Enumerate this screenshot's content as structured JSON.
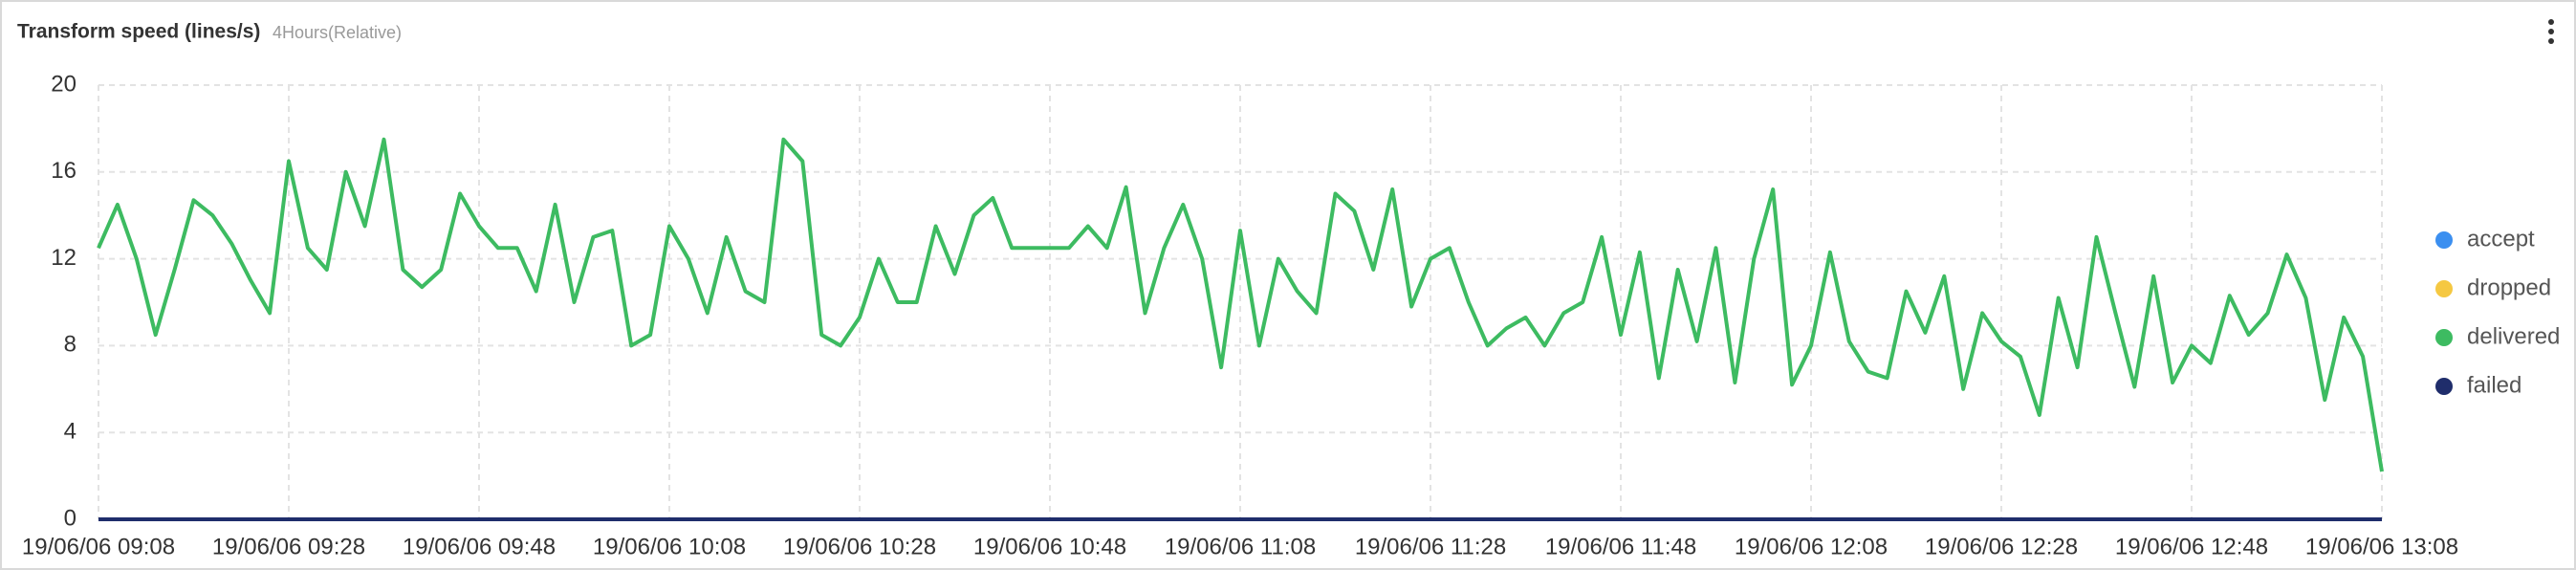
{
  "chart_data": {
    "type": "line",
    "title": "Transform speed (lines/s)",
    "subtitle": "4Hours(Relative)",
    "x": [
      "19/06/06 09:08",
      "19/06/06 09:10",
      "19/06/06 09:12",
      "19/06/06 09:14",
      "19/06/06 09:16",
      "19/06/06 09:18",
      "19/06/06 09:20",
      "19/06/06 09:22",
      "19/06/06 09:24",
      "19/06/06 09:26",
      "19/06/06 09:28",
      "19/06/06 09:30",
      "19/06/06 09:32",
      "19/06/06 09:34",
      "19/06/06 09:36",
      "19/06/06 09:38",
      "19/06/06 09:40",
      "19/06/06 09:42",
      "19/06/06 09:44",
      "19/06/06 09:46",
      "19/06/06 09:48",
      "19/06/06 09:50",
      "19/06/06 09:52",
      "19/06/06 09:54",
      "19/06/06 09:56",
      "19/06/06 09:58",
      "19/06/06 10:00",
      "19/06/06 10:02",
      "19/06/06 10:04",
      "19/06/06 10:06",
      "19/06/06 10:08",
      "19/06/06 10:10",
      "19/06/06 10:12",
      "19/06/06 10:14",
      "19/06/06 10:16",
      "19/06/06 10:18",
      "19/06/06 10:20",
      "19/06/06 10:22",
      "19/06/06 10:24",
      "19/06/06 10:26",
      "19/06/06 10:28",
      "19/06/06 10:30",
      "19/06/06 10:32",
      "19/06/06 10:34",
      "19/06/06 10:36",
      "19/06/06 10:38",
      "19/06/06 10:40",
      "19/06/06 10:42",
      "19/06/06 10:44",
      "19/06/06 10:46",
      "19/06/06 10:48",
      "19/06/06 10:50",
      "19/06/06 10:52",
      "19/06/06 10:54",
      "19/06/06 10:56",
      "19/06/06 10:58",
      "19/06/06 11:00",
      "19/06/06 11:02",
      "19/06/06 11:04",
      "19/06/06 11:06",
      "19/06/06 11:08",
      "19/06/06 11:10",
      "19/06/06 11:12",
      "19/06/06 11:14",
      "19/06/06 11:16",
      "19/06/06 11:18",
      "19/06/06 11:20",
      "19/06/06 11:22",
      "19/06/06 11:24",
      "19/06/06 11:26",
      "19/06/06 11:28",
      "19/06/06 11:30",
      "19/06/06 11:32",
      "19/06/06 11:34",
      "19/06/06 11:36",
      "19/06/06 11:38",
      "19/06/06 11:40",
      "19/06/06 11:42",
      "19/06/06 11:44",
      "19/06/06 11:46",
      "19/06/06 11:48",
      "19/06/06 11:50",
      "19/06/06 11:52",
      "19/06/06 11:54",
      "19/06/06 11:56",
      "19/06/06 11:58",
      "19/06/06 12:00",
      "19/06/06 12:02",
      "19/06/06 12:04",
      "19/06/06 12:06",
      "19/06/06 12:08",
      "19/06/06 12:10",
      "19/06/06 12:12",
      "19/06/06 12:14",
      "19/06/06 12:16",
      "19/06/06 12:18",
      "19/06/06 12:20",
      "19/06/06 12:22",
      "19/06/06 12:24",
      "19/06/06 12:26",
      "19/06/06 12:28",
      "19/06/06 12:30",
      "19/06/06 12:32",
      "19/06/06 12:34",
      "19/06/06 12:36",
      "19/06/06 12:38",
      "19/06/06 12:40",
      "19/06/06 12:42",
      "19/06/06 12:44",
      "19/06/06 12:46",
      "19/06/06 12:48",
      "19/06/06 12:50",
      "19/06/06 12:52",
      "19/06/06 12:54",
      "19/06/06 12:56",
      "19/06/06 12:58",
      "19/06/06 13:00",
      "19/06/06 13:02",
      "19/06/06 13:04",
      "19/06/06 13:06",
      "19/06/06 13:08"
    ],
    "series": [
      {
        "name": "accept",
        "color": "#3b8ff0",
        "values": [
          0,
          0,
          0,
          0,
          0,
          0,
          0,
          0,
          0,
          0,
          0,
          0,
          0,
          0,
          0,
          0,
          0,
          0,
          0,
          0,
          0,
          0,
          0,
          0,
          0,
          0,
          0,
          0,
          0,
          0,
          0,
          0,
          0,
          0,
          0,
          0,
          0,
          0,
          0,
          0,
          0,
          0,
          0,
          0,
          0,
          0,
          0,
          0,
          0,
          0,
          0,
          0,
          0,
          0,
          0,
          0,
          0,
          0,
          0,
          0,
          0,
          0,
          0,
          0,
          0,
          0,
          0,
          0,
          0,
          0,
          0,
          0,
          0,
          0,
          0,
          0,
          0,
          0,
          0,
          0,
          0,
          0,
          0,
          0,
          0,
          0,
          0,
          0,
          0,
          0,
          0,
          0,
          0,
          0,
          0,
          0,
          0,
          0,
          0,
          0,
          0,
          0,
          0,
          0,
          0,
          0,
          0,
          0,
          0,
          0,
          0,
          0,
          0,
          0,
          0,
          0,
          0,
          0,
          0,
          0,
          0
        ]
      },
      {
        "name": "dropped",
        "color": "#f5c842",
        "values": [
          0,
          0,
          0,
          0,
          0,
          0,
          0,
          0,
          0,
          0,
          0,
          0,
          0,
          0,
          0,
          0,
          0,
          0,
          0,
          0,
          0,
          0,
          0,
          0,
          0,
          0,
          0,
          0,
          0,
          0,
          0,
          0,
          0,
          0,
          0,
          0,
          0,
          0,
          0,
          0,
          0,
          0,
          0,
          0,
          0,
          0,
          0,
          0,
          0,
          0,
          0,
          0,
          0,
          0,
          0,
          0,
          0,
          0,
          0,
          0,
          0,
          0,
          0,
          0,
          0,
          0,
          0,
          0,
          0,
          0,
          0,
          0,
          0,
          0,
          0,
          0,
          0,
          0,
          0,
          0,
          0,
          0,
          0,
          0,
          0,
          0,
          0,
          0,
          0,
          0,
          0,
          0,
          0,
          0,
          0,
          0,
          0,
          0,
          0,
          0,
          0,
          0,
          0,
          0,
          0,
          0,
          0,
          0,
          0,
          0,
          0,
          0,
          0,
          0,
          0,
          0,
          0,
          0,
          0,
          0,
          0
        ]
      },
      {
        "name": "delivered",
        "color": "#3dbb61",
        "values": [
          12.5,
          14.5,
          12,
          8.5,
          11.5,
          14.7,
          14,
          12.7,
          11,
          9.5,
          16.5,
          12.5,
          11.5,
          16,
          13.5,
          17.5,
          11.5,
          10.7,
          11.5,
          15,
          13.5,
          12.5,
          12.5,
          10.5,
          14.5,
          10,
          13,
          13.3,
          8,
          8.5,
          13.5,
          12,
          9.5,
          13,
          10.5,
          10,
          17.5,
          16.5,
          8.5,
          8,
          9.3,
          12,
          10,
          10,
          13.5,
          11.3,
          14,
          14.8,
          12.5,
          12.5,
          12.5,
          12.5,
          13.5,
          12.5,
          15.3,
          9.5,
          12.5,
          14.5,
          12,
          7,
          13.3,
          8,
          12,
          10.5,
          9.5,
          15,
          14.2,
          11.5,
          15.2,
          9.8,
          12,
          12.5,
          10,
          8,
          8.8,
          9.3,
          8,
          9.5,
          10,
          13,
          8.5,
          12.3,
          6.5,
          11.5,
          8.2,
          12.5,
          6.3,
          12,
          15.2,
          6.2,
          8,
          12.3,
          8.2,
          6.8,
          6.5,
          10.5,
          8.6,
          11.2,
          6,
          9.5,
          8.2,
          7.5,
          4.8,
          10.2,
          7,
          13,
          9.5,
          6.1,
          11.2,
          6.3,
          8,
          7.2,
          10.3,
          8.5,
          9.5,
          12.2,
          10.2,
          5.5,
          9.3,
          7.5,
          2.2
        ]
      },
      {
        "name": "failed",
        "color": "#1f2d6b",
        "values": [
          0,
          0,
          0,
          0,
          0,
          0,
          0,
          0,
          0,
          0,
          0,
          0,
          0,
          0,
          0,
          0,
          0,
          0,
          0,
          0,
          0,
          0,
          0,
          0,
          0,
          0,
          0,
          0,
          0,
          0,
          0,
          0,
          0,
          0,
          0,
          0,
          0,
          0,
          0,
          0,
          0,
          0,
          0,
          0,
          0,
          0,
          0,
          0,
          0,
          0,
          0,
          0,
          0,
          0,
          0,
          0,
          0,
          0,
          0,
          0,
          0,
          0,
          0,
          0,
          0,
          0,
          0,
          0,
          0,
          0,
          0,
          0,
          0,
          0,
          0,
          0,
          0,
          0,
          0,
          0,
          0,
          0,
          0,
          0,
          0,
          0,
          0,
          0,
          0,
          0,
          0,
          0,
          0,
          0,
          0,
          0,
          0,
          0,
          0,
          0,
          0,
          0,
          0,
          0,
          0,
          0,
          0,
          0,
          0,
          0,
          0,
          0,
          0,
          0,
          0,
          0,
          0,
          0,
          0,
          0,
          0
        ]
      }
    ],
    "xlim": [
      "19/06/06 09:08",
      "19/06/06 13:08"
    ],
    "xticks": [
      "19/06/06 09:08",
      "19/06/06 09:28",
      "19/06/06 09:48",
      "19/06/06 10:08",
      "19/06/06 10:28",
      "19/06/06 10:48",
      "19/06/06 11:08",
      "19/06/06 11:28",
      "19/06/06 11:48",
      "19/06/06 12:08",
      "19/06/06 12:28",
      "19/06/06 12:48",
      "19/06/06 13:08"
    ],
    "ylim": [
      0,
      20
    ],
    "yticks": [
      0,
      4,
      8,
      12,
      16,
      20
    ],
    "grid": true,
    "legend": "right"
  }
}
